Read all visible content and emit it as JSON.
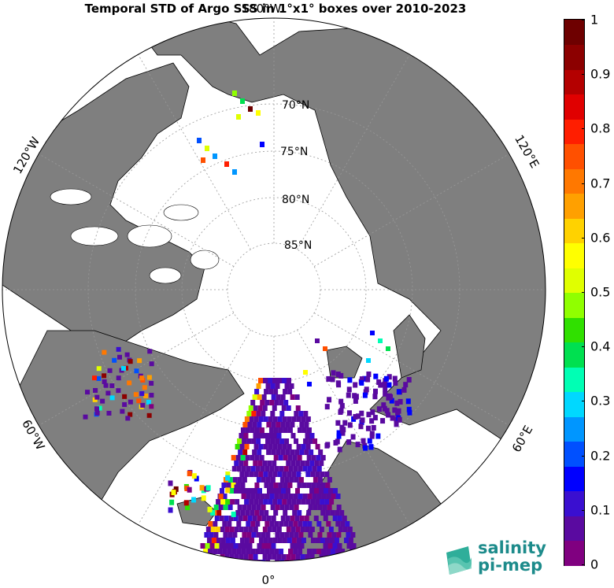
{
  "title": "Temporal STD of Argo SSS in 1°x1° boxes over 2010-2023",
  "map": {
    "projection": "north-polar-stereographic",
    "lat_labels": [
      "70°N",
      "75°N",
      "80°N",
      "85°N"
    ],
    "lon_labels": {
      "top": "180°W",
      "bottom": "0°",
      "left_upper": "120°W",
      "left_lower": "60°W",
      "right_upper": "120°E",
      "right_lower": "60°E"
    },
    "colors": {
      "land": "#7f7f7f",
      "ocean_ice": "#ffffff",
      "grid": "#999999",
      "coast": "#000000"
    }
  },
  "colorbar": {
    "min": 0,
    "max": 1,
    "tick_labels": [
      "0",
      "0.1",
      "0.2",
      "0.3",
      "0.4",
      "0.5",
      "0.6",
      "0.7",
      "0.8",
      "0.9",
      "1"
    ],
    "colors": [
      "#800080",
      "#5a0aa0",
      "#3a0fd0",
      "#0000ff",
      "#0050ff",
      "#0096ff",
      "#00d8ff",
      "#00ffb4",
      "#00e050",
      "#30e000",
      "#90ff00",
      "#e0ff00",
      "#ffff00",
      "#ffd200",
      "#ffa000",
      "#ff7800",
      "#ff5000",
      "#ff1e00",
      "#e00000",
      "#b40000",
      "#8c0000",
      "#6e0000"
    ]
  },
  "logo": {
    "line1": "salinity",
    "line2": "pi-mep",
    "color": "#1d8b8b"
  }
}
